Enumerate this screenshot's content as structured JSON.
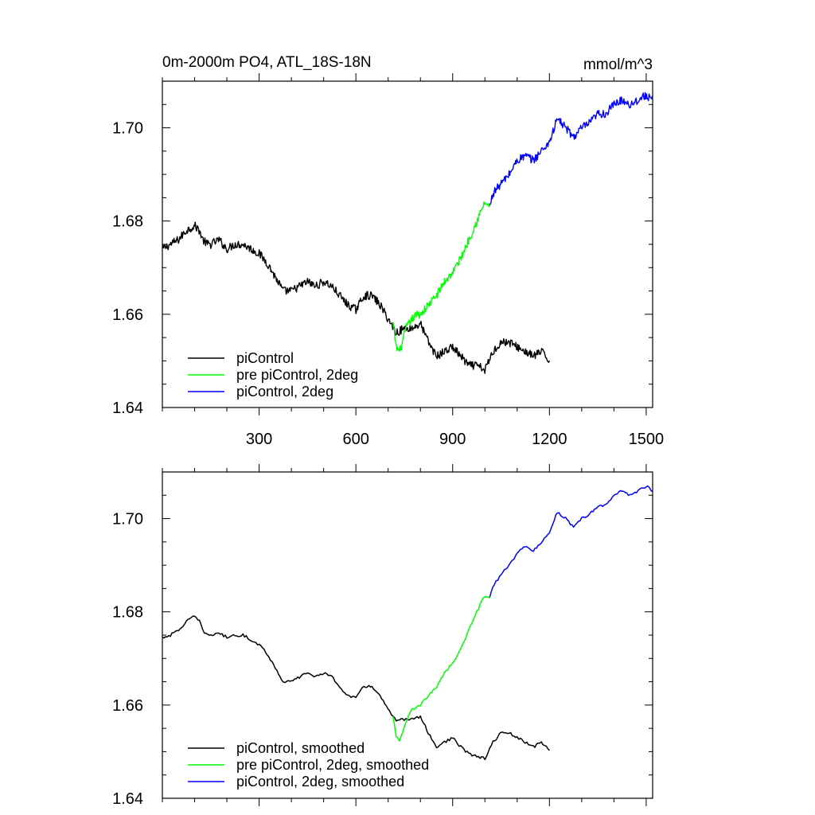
{
  "figure": {
    "title_left": "0m-2000m PO4, ATL_18S-18N",
    "title_right": "mmol/m^3"
  },
  "chart_data": [
    {
      "type": "line",
      "panel": "top",
      "title": "0m-2000m PO4, ATL_18S-18N",
      "unit_label": "mmol/m^3",
      "xlim": [
        0,
        1520
      ],
      "ylim": [
        1.64,
        1.71
      ],
      "x_ticks": [
        300,
        600,
        900,
        1200,
        1500
      ],
      "x_tick_labels": [
        "300",
        "600",
        "900",
        "1200",
        "1500"
      ],
      "y_ticks": [
        1.64,
        1.66,
        1.68,
        1.7
      ],
      "y_tick_labels": [
        "1.64",
        "1.66",
        "1.68",
        "1.70"
      ],
      "legend_position": "bottom-left",
      "grid": false,
      "series": [
        {
          "name": "piControl",
          "color": "#000000",
          "x": [
            0,
            25,
            50,
            75,
            100,
            115,
            125,
            140,
            150,
            175,
            200,
            225,
            250,
            275,
            300,
            325,
            350,
            375,
            400,
            425,
            450,
            475,
            500,
            525,
            550,
            575,
            600,
            625,
            650,
            675,
            700,
            725,
            750,
            775,
            800,
            825,
            850,
            875,
            900,
            925,
            950,
            975,
            1000,
            1025,
            1050,
            1075,
            1100,
            1125,
            1150,
            1175,
            1200
          ],
          "values": [
            1.674,
            1.675,
            1.676,
            1.678,
            1.679,
            1.678,
            1.676,
            1.675,
            1.675,
            1.676,
            1.674,
            1.675,
            1.675,
            1.674,
            1.673,
            1.671,
            1.668,
            1.665,
            1.665,
            1.666,
            1.667,
            1.666,
            1.667,
            1.666,
            1.664,
            1.662,
            1.661,
            1.664,
            1.664,
            1.662,
            1.659,
            1.656,
            1.657,
            1.657,
            1.658,
            1.654,
            1.651,
            1.652,
            1.653,
            1.651,
            1.649,
            1.649,
            1.648,
            1.652,
            1.654,
            1.654,
            1.653,
            1.652,
            1.651,
            1.652,
            1.65
          ]
        },
        {
          "name": "pre piControl, 2deg",
          "color": "#00ff00",
          "x": [
            715,
            725,
            735,
            745,
            755,
            765,
            775,
            790,
            800,
            825,
            850,
            875,
            900,
            925,
            950,
            975,
            1000,
            1015
          ],
          "values": [
            1.658,
            1.653,
            1.652,
            1.654,
            1.657,
            1.658,
            1.659,
            1.66,
            1.66,
            1.662,
            1.664,
            1.667,
            1.669,
            1.672,
            1.676,
            1.68,
            1.684,
            1.683
          ]
        },
        {
          "name": "piControl, 2deg",
          "color": "#0000ff",
          "x": [
            1015,
            1025,
            1050,
            1075,
            1100,
            1125,
            1150,
            1175,
            1200,
            1225,
            1250,
            1275,
            1300,
            1325,
            1350,
            1375,
            1400,
            1425,
            1450,
            1475,
            1500,
            1520
          ],
          "values": [
            1.683,
            1.686,
            1.688,
            1.69,
            1.693,
            1.694,
            1.693,
            1.695,
            1.697,
            1.702,
            1.7,
            1.698,
            1.7,
            1.701,
            1.703,
            1.703,
            1.705,
            1.706,
            1.705,
            1.706,
            1.707,
            1.706
          ]
        }
      ]
    },
    {
      "type": "line",
      "panel": "bottom",
      "xlim": [
        0,
        1520
      ],
      "ylim": [
        1.64,
        1.71
      ],
      "x_ticks": [
        300,
        600,
        900,
        1200,
        1500
      ],
      "x_tick_labels": [
        "",
        "",
        "",
        "",
        ""
      ],
      "y_ticks": [
        1.64,
        1.66,
        1.68,
        1.7
      ],
      "y_tick_labels": [
        "1.64",
        "1.66",
        "1.68",
        "1.70"
      ],
      "legend_position": "bottom-left",
      "grid": false,
      "series": [
        {
          "name": "piControl, smoothed",
          "color": "#000000",
          "x": [
            0,
            25,
            50,
            75,
            100,
            115,
            125,
            140,
            150,
            175,
            200,
            225,
            250,
            275,
            300,
            325,
            350,
            375,
            400,
            425,
            450,
            475,
            500,
            525,
            550,
            575,
            600,
            625,
            650,
            675,
            700,
            725,
            750,
            775,
            800,
            825,
            850,
            875,
            900,
            925,
            950,
            975,
            1000,
            1025,
            1050,
            1075,
            1100,
            1125,
            1150,
            1175,
            1200
          ],
          "values": [
            1.6745,
            1.675,
            1.676,
            1.678,
            1.679,
            1.678,
            1.676,
            1.675,
            1.675,
            1.6755,
            1.6745,
            1.675,
            1.675,
            1.674,
            1.673,
            1.671,
            1.668,
            1.665,
            1.665,
            1.666,
            1.667,
            1.666,
            1.667,
            1.666,
            1.664,
            1.662,
            1.6615,
            1.664,
            1.664,
            1.662,
            1.659,
            1.6565,
            1.657,
            1.657,
            1.6575,
            1.654,
            1.651,
            1.652,
            1.653,
            1.651,
            1.6495,
            1.649,
            1.6485,
            1.652,
            1.654,
            1.654,
            1.653,
            1.652,
            1.651,
            1.652,
            1.6505
          ]
        },
        {
          "name": "pre piControl, 2deg, smoothed",
          "color": "#00ff00",
          "x": [
            715,
            725,
            735,
            745,
            755,
            765,
            775,
            790,
            800,
            825,
            850,
            875,
            900,
            925,
            950,
            975,
            1000,
            1015
          ],
          "values": [
            1.6575,
            1.653,
            1.6525,
            1.654,
            1.6565,
            1.658,
            1.659,
            1.6595,
            1.66,
            1.662,
            1.664,
            1.667,
            1.669,
            1.672,
            1.676,
            1.68,
            1.6835,
            1.683
          ]
        },
        {
          "name": "piControl, 2deg, smoothed",
          "color": "#0000ff",
          "x": [
            1015,
            1025,
            1050,
            1075,
            1100,
            1125,
            1150,
            1175,
            1200,
            1225,
            1250,
            1275,
            1300,
            1325,
            1350,
            1375,
            1400,
            1425,
            1450,
            1475,
            1500,
            1520
          ],
          "values": [
            1.683,
            1.6855,
            1.688,
            1.69,
            1.6925,
            1.694,
            1.693,
            1.695,
            1.697,
            1.7015,
            1.7,
            1.698,
            1.7,
            1.701,
            1.7025,
            1.703,
            1.705,
            1.706,
            1.705,
            1.706,
            1.707,
            1.706
          ]
        }
      ]
    }
  ]
}
